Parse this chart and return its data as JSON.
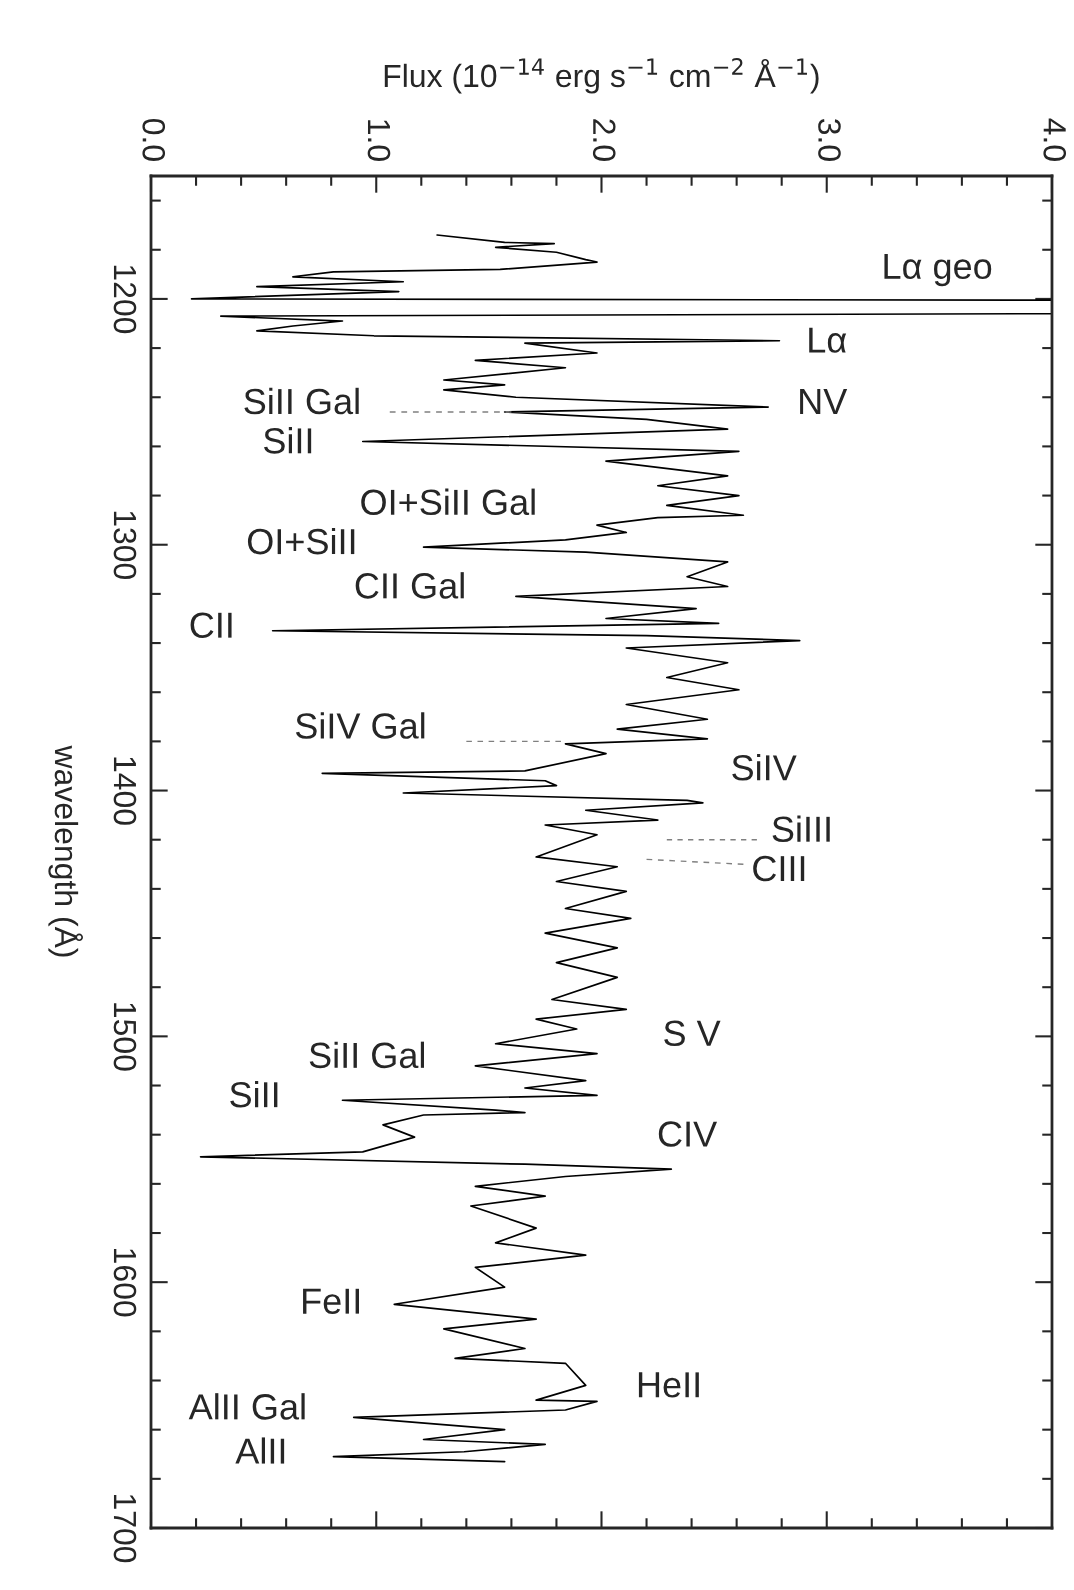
{
  "chart_data": {
    "type": "line",
    "orientation": "horizontal",
    "xlabel": "Flux (10$^{−14}$ erg s$^{−1}$ cm$^{−2}$ Å$^{−1}$)",
    "ylabel": "wavelength (Å)",
    "xlim": [
      0,
      4.0
    ],
    "ylim": [
      1700,
      1150
    ],
    "xticks": [
      {
        "value": 0,
        "label": "0.0"
      },
      {
        "value": 0.2,
        "label": null
      },
      {
        "value": 0.4,
        "label": null
      },
      {
        "value": 0.6,
        "label": null
      },
      {
        "value": 0.8,
        "label": null
      },
      {
        "value": 1.0,
        "label": "1.0"
      },
      {
        "value": 1.2,
        "label": null
      },
      {
        "value": 1.4,
        "label": null
      },
      {
        "value": 1.6,
        "label": null
      },
      {
        "value": 1.8,
        "label": null
      },
      {
        "value": 2.0,
        "label": "2.0"
      },
      {
        "value": 2.2,
        "label": null
      },
      {
        "value": 2.4,
        "label": null
      },
      {
        "value": 2.6,
        "label": null
      },
      {
        "value": 2.8,
        "label": null
      },
      {
        "value": 3.0,
        "label": "3.0"
      },
      {
        "value": 3.2,
        "label": null
      },
      {
        "value": 3.4,
        "label": null
      },
      {
        "value": 3.6,
        "label": null
      },
      {
        "value": 3.8,
        "label": null
      },
      {
        "value": 4.0,
        "label": "4.0"
      }
    ],
    "yticks": [
      {
        "value": 1160,
        "label": null
      },
      {
        "value": 1180,
        "label": null
      },
      1200,
      {
        "value": 1220,
        "label": null
      },
      {
        "value": 1240,
        "label": null
      },
      {
        "value": 1260,
        "label": null
      },
      {
        "value": 1280,
        "label": null
      },
      1300,
      {
        "value": 1320,
        "label": null
      },
      {
        "value": 1340,
        "label": null
      },
      {
        "value": 1360,
        "label": null
      },
      {
        "value": 1380,
        "label": null
      },
      1400,
      {
        "value": 1420,
        "label": null
      },
      {
        "value": 1440,
        "label": null
      },
      {
        "value": 1460,
        "label": null
      },
      {
        "value": 1480,
        "label": null
      },
      1500,
      {
        "value": 1520,
        "label": null
      },
      {
        "value": 1540,
        "label": null
      },
      {
        "value": 1560,
        "label": null
      },
      {
        "value": 1580,
        "label": null
      },
      1600,
      {
        "value": 1620,
        "label": null
      },
      {
        "value": 1640,
        "label": null
      },
      {
        "value": 1660,
        "label": null
      },
      {
        "value": 1680,
        "label": null
      },
      1700
    ],
    "tick_labels": "xy",
    "grid": false,
    "legend": false,
    "series": [
      {
        "color": "#000000",
        "x": [
          1174,
          1177,
          1177.5,
          1179,
          1181,
          1184,
          1185,
          1188,
          1189,
          1191,
          1193,
          1195,
          1197,
          1200,
          1200.5,
          1206,
          1207,
          1209,
          1211,
          1213,
          1215,
          1217,
          1218,
          1222,
          1225,
          1228,
          1233,
          1235,
          1237,
          1240,
          1244,
          1246,
          1249,
          1253,
          1258,
          1262,
          1266,
          1272,
          1276,
          1280,
          1284,
          1288,
          1289,
          1292,
          1295,
          1298,
          1301,
          1303,
          1307,
          1313,
          1317,
          1321,
          1326,
          1330,
          1332,
          1335,
          1337,
          1339,
          1342,
          1348,
          1354,
          1359,
          1365,
          1371,
          1375,
          1379,
          1381,
          1385,
          1392,
          1393,
          1396,
          1398,
          1401,
          1404,
          1405,
          1408,
          1412,
          1414,
          1418,
          1427,
          1431,
          1437,
          1441,
          1448,
          1452,
          1458,
          1464,
          1470,
          1476,
          1485,
          1489,
          1493,
          1497,
          1503,
          1507,
          1512,
          1518,
          1521,
          1524,
          1526,
          1530,
          1531,
          1532,
          1536,
          1541,
          1547,
          1549,
          1552,
          1554,
          1557,
          1561,
          1565,
          1569,
          1578,
          1584,
          1589,
          1594,
          1602,
          1609,
          1615,
          1619,
          1627,
          1631,
          1633,
          1642,
          1648,
          1648.5,
          1652,
          1655,
          1660,
          1664,
          1666,
          1669,
          1671,
          1673
        ],
        "values": [
          1.27,
          1.57,
          1.79,
          1.53,
          1.8,
          1.93,
          1.98,
          1.55,
          0.81,
          0.63,
          1.12,
          0.47,
          1.1,
          0.18,
          4.0,
          4.0,
          0.31,
          0.85,
          0.63,
          0.47,
          0.99,
          2.79,
          1.66,
          1.98,
          1.44,
          1.84,
          1.3,
          1.57,
          1.3,
          1.62,
          2.74,
          1.57,
          2.2,
          2.56,
          0.94,
          2.61,
          2.02,
          2.56,
          2.25,
          2.61,
          2.29,
          2.63,
          2.25,
          1.98,
          2.11,
          1.84,
          1.21,
          1.93,
          2.56,
          2.38,
          2.56,
          1.62,
          2.42,
          2.02,
          2.52,
          0.54,
          2.2,
          2.88,
          2.11,
          2.56,
          2.29,
          2.61,
          2.11,
          2.47,
          2.07,
          2.47,
          1.84,
          2.02,
          1.66,
          0.76,
          1.75,
          1.8,
          1.12,
          2.38,
          2.45,
          1.93,
          2.25,
          1.75,
          1.98,
          1.71,
          2.07,
          1.8,
          2.11,
          1.84,
          2.13,
          1.75,
          2.07,
          1.8,
          2.07,
          1.78,
          2.11,
          1.71,
          1.89,
          1.53,
          1.98,
          1.44,
          1.93,
          1.66,
          1.98,
          0.85,
          1.53,
          1.66,
          1.21,
          1.03,
          1.17,
          0.94,
          0.22,
          1.66,
          2.31,
          1.84,
          1.44,
          1.75,
          1.42,
          1.71,
          1.53,
          1.93,
          1.44,
          1.57,
          1.08,
          1.71,
          1.3,
          1.66,
          1.35,
          1.84,
          1.93,
          1.71,
          1.98,
          1.84,
          0.9,
          1.57,
          1.21,
          1.75,
          1.39,
          0.81,
          1.57
        ]
      },
      {
        "color": "#808080",
        "line_style": "dashed",
        "x": [
          1246,
          1246
        ],
        "values": [
          1.06,
          1.6
        ]
      },
      {
        "color": "#808080",
        "line_style": "dashed",
        "x": [
          1380,
          1380
        ],
        "values": [
          1.4,
          1.82
        ]
      },
      {
        "color": "#808080",
        "line_style": "dashed",
        "x": [
          1420,
          1420
        ],
        "values": [
          2.29,
          2.69
        ]
      },
      {
        "color": "#808080",
        "line_style": "dashed",
        "x": [
          1428,
          1430
        ],
        "values": [
          2.2,
          2.63
        ]
      }
    ],
    "annotations": [
      "Lα geo",
      "Lα",
      "NV",
      "SiII Gal",
      "SiII",
      "OI+SiII Gal",
      "OI+SiII",
      "CII Gal",
      "CII",
      "SiIV Gal",
      "SiIV",
      "SiIII",
      "CIII",
      "S V",
      "SiII Gal",
      "SiII",
      "CIV",
      "FeII",
      "HeII",
      "AlII Gal",
      "AlII"
    ]
  }
}
